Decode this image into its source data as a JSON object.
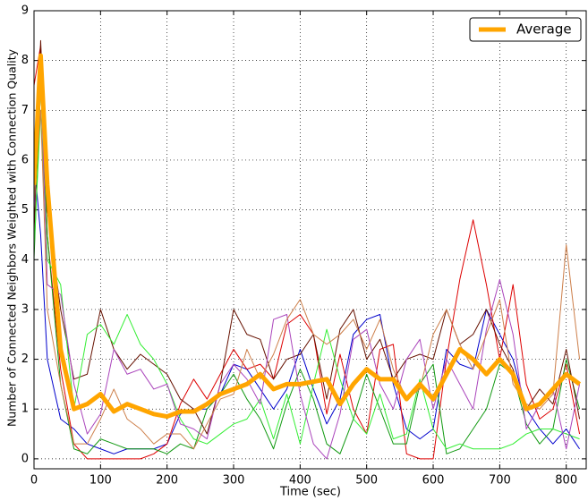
{
  "chart_data": {
    "type": "line",
    "xlabel": "Time (sec)",
    "ylabel": "Number of Connected Neighbors Weighted with Connection Quality",
    "x": [
      0,
      10,
      20,
      40,
      60,
      80,
      100,
      120,
      140,
      160,
      180,
      200,
      220,
      240,
      260,
      280,
      300,
      320,
      340,
      360,
      380,
      400,
      420,
      440,
      460,
      480,
      500,
      520,
      540,
      560,
      580,
      600,
      620,
      640,
      660,
      680,
      700,
      720,
      740,
      760,
      780,
      800,
      820
    ],
    "series": [
      {
        "color": "#0000cc",
        "values": [
          6.0,
          4.5,
          2.0,
          0.8,
          0.6,
          0.3,
          0.2,
          0.1,
          0.2,
          0.2,
          0.2,
          0.3,
          0.9,
          1.0,
          1.0,
          1.3,
          1.9,
          1.8,
          1.4,
          1.0,
          1.4,
          2.2,
          1.4,
          0.7,
          1.2,
          2.5,
          2.8,
          2.9,
          1.5,
          0.6,
          0.4,
          0.6,
          2.2,
          1.9,
          1.8,
          3.0,
          2.5,
          2.0,
          1.0,
          0.6,
          0.3,
          0.6,
          0.2
        ]
      },
      {
        "color": "#dd0000",
        "values": [
          7.5,
          8.3,
          4.5,
          1.8,
          0.3,
          0.0,
          0.0,
          0.0,
          0.0,
          0.0,
          0.1,
          0.3,
          1.1,
          1.6,
          1.2,
          1.7,
          2.2,
          1.8,
          1.9,
          1.6,
          2.7,
          2.9,
          2.5,
          0.9,
          2.1,
          1.0,
          0.5,
          2.2,
          2.3,
          0.1,
          0.0,
          0.0,
          2.0,
          3.6,
          4.8,
          3.5,
          2.0,
          3.5,
          1.5,
          0.8,
          1.0,
          1.9,
          0.5
        ]
      },
      {
        "color": "#119911",
        "values": [
          4.0,
          7.5,
          4.5,
          1.5,
          0.2,
          0.1,
          0.4,
          0.3,
          0.2,
          0.2,
          0.2,
          0.1,
          0.3,
          0.2,
          1.0,
          1.3,
          1.7,
          1.2,
          0.8,
          0.2,
          1.1,
          1.8,
          1.2,
          0.3,
          0.1,
          0.8,
          1.7,
          1.0,
          0.3,
          0.3,
          1.5,
          1.9,
          0.1,
          0.2,
          0.6,
          1.0,
          1.9,
          1.7,
          0.7,
          0.3,
          0.6,
          2.0,
          1.0
        ]
      },
      {
        "color": "#661100",
        "values": [
          4.5,
          8.4,
          5.0,
          3.0,
          1.6,
          1.7,
          3.0,
          2.2,
          1.8,
          2.1,
          1.9,
          1.7,
          1.2,
          1.0,
          0.5,
          1.5,
          3.0,
          2.5,
          2.4,
          1.6,
          2.0,
          2.1,
          2.5,
          1.2,
          2.6,
          3.0,
          2.0,
          2.4,
          1.6,
          2.0,
          2.1,
          2.0,
          3.0,
          2.3,
          2.5,
          3.0,
          2.3,
          1.8,
          1.0,
          1.4,
          1.1,
          2.2,
          0.8
        ]
      },
      {
        "color": "#33ee33",
        "values": [
          4.2,
          7.0,
          4.0,
          3.5,
          1.0,
          2.5,
          2.7,
          2.3,
          2.9,
          2.3,
          2.0,
          1.5,
          0.8,
          0.4,
          0.3,
          0.5,
          0.7,
          0.8,
          1.2,
          0.4,
          1.3,
          0.3,
          1.5,
          2.6,
          1.6,
          0.8,
          0.5,
          1.3,
          0.4,
          0.5,
          1.6,
          0.6,
          0.2,
          0.3,
          0.2,
          0.2,
          0.2,
          0.3,
          0.5,
          0.6,
          0.6,
          0.5,
          0.4
        ]
      },
      {
        "color": "#aa44bb",
        "values": [
          5.0,
          7.8,
          3.5,
          3.3,
          1.5,
          0.5,
          0.9,
          2.2,
          1.7,
          1.8,
          1.4,
          1.5,
          0.7,
          0.6,
          0.4,
          1.5,
          1.9,
          1.6,
          1.1,
          2.8,
          2.9,
          1.3,
          0.3,
          0.0,
          0.9,
          2.4,
          2.6,
          1.5,
          1.0,
          2.0,
          2.4,
          1.0,
          2.0,
          1.5,
          1.0,
          2.6,
          3.6,
          2.5,
          0.6,
          1.1,
          1.4,
          0.2,
          1.5
        ]
      },
      {
        "color": "#cd7f4a",
        "values": [
          5.2,
          7.0,
          3.0,
          1.5,
          0.3,
          0.3,
          0.8,
          1.4,
          0.8,
          0.6,
          0.3,
          0.5,
          0.5,
          0.2,
          0.7,
          1.2,
          1.3,
          2.2,
          1.6,
          2.1,
          2.8,
          3.2,
          2.5,
          2.3,
          2.5,
          2.8,
          2.2,
          2.8,
          1.8,
          1.2,
          1.4,
          2.5,
          3.0,
          2.3,
          1.8,
          2.5,
          3.2,
          1.5,
          1.1,
          1.0,
          1.3,
          4.3,
          2.0
        ]
      },
      {
        "name": "Average",
        "color": "#ffa500",
        "values": [
          5.5,
          8.1,
          5.5,
          2.2,
          1.0,
          1.1,
          1.3,
          0.95,
          1.1,
          1.0,
          0.9,
          0.85,
          0.95,
          0.95,
          1.1,
          1.3,
          1.4,
          1.5,
          1.7,
          1.4,
          1.5,
          1.5,
          1.55,
          1.6,
          1.1,
          1.5,
          1.8,
          1.6,
          1.6,
          1.2,
          1.5,
          1.2,
          1.7,
          2.2,
          2.0,
          1.7,
          2.0,
          1.7,
          1.0,
          1.1,
          1.4,
          1.7,
          1.5
        ]
      }
    ],
    "xlim": [
      0,
      830
    ],
    "ylim": [
      -0.2,
      9
    ],
    "xticks": [
      0,
      100,
      200,
      300,
      400,
      500,
      600,
      700,
      800
    ],
    "yticks": [
      0,
      1,
      2,
      3,
      4,
      5,
      6,
      7,
      8,
      9
    ],
    "grid": true,
    "legend": "upper right"
  }
}
